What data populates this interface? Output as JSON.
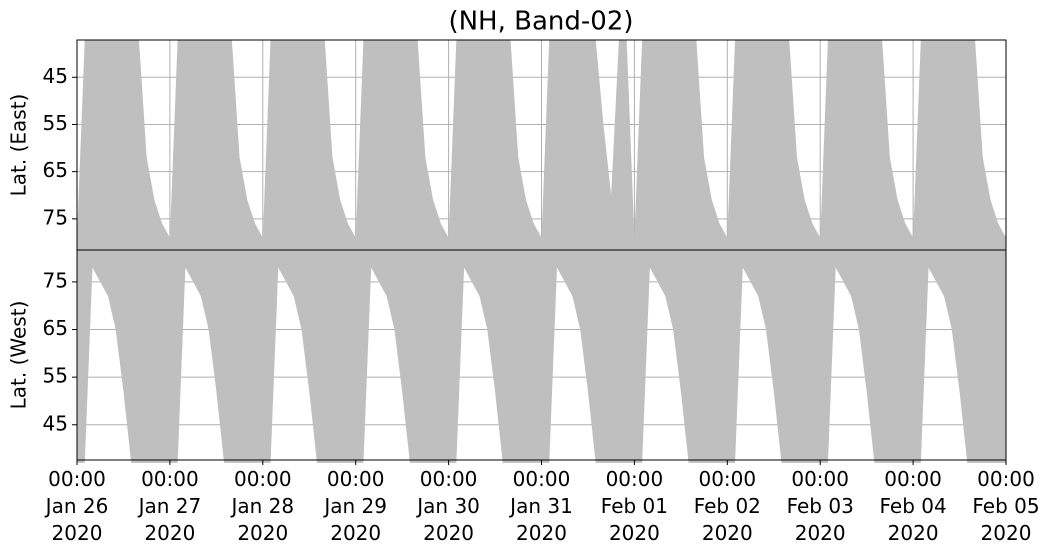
{
  "chart_data": {
    "type": "area",
    "title": "(NH, Band-02)",
    "x": [
      "2020-01-26 00:00",
      "2020-01-26 02:00",
      "2020-01-26 04:00",
      "2020-01-26 06:00",
      "2020-01-26 08:00",
      "2020-01-26 10:00",
      "2020-01-26 12:00",
      "2020-01-26 14:00",
      "2020-01-26 16:00",
      "2020-01-26 18:00",
      "2020-01-26 20:00",
      "2020-01-26 22:00",
      "2020-01-27 00:00",
      "2020-01-27 02:00",
      "2020-01-27 04:00",
      "2020-01-27 06:00",
      "2020-01-27 08:00",
      "2020-01-27 10:00",
      "2020-01-27 12:00",
      "2020-01-27 14:00",
      "2020-01-27 16:00",
      "2020-01-27 18:00",
      "2020-01-27 20:00",
      "2020-01-27 22:00",
      "2020-01-28 00:00",
      "2020-01-28 02:00",
      "2020-01-28 04:00",
      "2020-01-28 06:00",
      "2020-01-28 08:00",
      "2020-01-28 10:00",
      "2020-01-28 12:00",
      "2020-01-28 14:00",
      "2020-01-28 16:00",
      "2020-01-28 18:00",
      "2020-01-28 20:00",
      "2020-01-28 22:00",
      "2020-01-29 00:00",
      "2020-01-29 02:00",
      "2020-01-29 04:00",
      "2020-01-29 06:00",
      "2020-01-29 08:00",
      "2020-01-29 10:00",
      "2020-01-29 12:00",
      "2020-01-29 14:00",
      "2020-01-29 16:00",
      "2020-01-29 18:00",
      "2020-01-29 20:00",
      "2020-01-29 22:00",
      "2020-01-30 00:00",
      "2020-01-30 02:00",
      "2020-01-30 04:00",
      "2020-01-30 06:00",
      "2020-01-30 08:00",
      "2020-01-30 10:00",
      "2020-01-30 12:00",
      "2020-01-30 14:00",
      "2020-01-30 16:00",
      "2020-01-30 18:00",
      "2020-01-30 20:00",
      "2020-01-30 22:00",
      "2020-01-31 00:00",
      "2020-01-31 02:00",
      "2020-01-31 04:00",
      "2020-01-31 06:00",
      "2020-01-31 08:00",
      "2020-01-31 10:00",
      "2020-01-31 12:00",
      "2020-01-31 14:00",
      "2020-01-31 16:00",
      "2020-01-31 18:00",
      "2020-01-31 20:00",
      "2020-01-31 22:00",
      "2020-02-01 00:00",
      "2020-02-01 02:00",
      "2020-02-01 04:00",
      "2020-02-01 06:00",
      "2020-02-01 08:00",
      "2020-02-01 10:00",
      "2020-02-01 12:00",
      "2020-02-01 14:00",
      "2020-02-01 16:00",
      "2020-02-01 18:00",
      "2020-02-01 20:00",
      "2020-02-01 22:00",
      "2020-02-02 00:00",
      "2020-02-02 02:00",
      "2020-02-02 04:00",
      "2020-02-02 06:00",
      "2020-02-02 08:00",
      "2020-02-02 10:00",
      "2020-02-02 12:00",
      "2020-02-02 14:00",
      "2020-02-02 16:00",
      "2020-02-02 18:00",
      "2020-02-02 20:00",
      "2020-02-02 22:00",
      "2020-02-03 00:00",
      "2020-02-03 02:00",
      "2020-02-03 04:00",
      "2020-02-03 06:00",
      "2020-02-03 08:00",
      "2020-02-03 10:00",
      "2020-02-03 12:00",
      "2020-02-03 14:00",
      "2020-02-03 16:00",
      "2020-02-03 18:00",
      "2020-02-03 20:00",
      "2020-02-03 22:00",
      "2020-02-04 00:00",
      "2020-02-04 02:00",
      "2020-02-04 04:00",
      "2020-02-04 06:00",
      "2020-02-04 08:00",
      "2020-02-04 10:00",
      "2020-02-04 12:00",
      "2020-02-04 14:00",
      "2020-02-04 16:00",
      "2020-02-04 18:00",
      "2020-02-04 20:00",
      "2020-02-04 22:00",
      "2020-02-05 00:00"
    ],
    "xlim": [
      "2020-01-26 00:00",
      "2020-02-05 00:00"
    ],
    "xticks": [
      {
        "value": "2020-01-26 00:00",
        "label": "00:00\nJan 26\n2020"
      },
      {
        "value": "2020-01-27 00:00",
        "label": "00:00\nJan 27\n2020"
      },
      {
        "value": "2020-01-28 00:00",
        "label": "00:00\nJan 28\n2020"
      },
      {
        "value": "2020-01-29 00:00",
        "label": "00:00\nJan 29\n2020"
      },
      {
        "value": "2020-01-30 00:00",
        "label": "00:00\nJan 30\n2020"
      },
      {
        "value": "2020-01-31 00:00",
        "label": "00:00\nJan 31\n2020"
      },
      {
        "value": "2020-02-01 00:00",
        "label": "00:00\nFeb 01\n2020"
      },
      {
        "value": "2020-02-02 00:00",
        "label": "00:00\nFeb 02\n2020"
      },
      {
        "value": "2020-02-03 00:00",
        "label": "00:00\nFeb 03\n2020"
      },
      {
        "value": "2020-02-04 00:00",
        "label": "00:00\nFeb 04\n2020"
      },
      {
        "value": "2020-02-05 00:00",
        "label": "00:00\nFeb 05\n2020"
      }
    ],
    "grid": true,
    "series": [
      {
        "name": "Lat. (East)",
        "color": "#bfbfbf",
        "ylim": [
          81.6,
          37.1
        ],
        "yticks": [
          45,
          55,
          65,
          75
        ],
        "values": [
          79,
          37,
          37,
          37,
          37,
          37,
          37,
          37,
          37,
          62,
          71,
          76,
          79,
          37,
          37,
          37,
          37,
          37,
          37,
          37,
          37,
          62,
          71,
          76,
          79,
          37,
          37,
          37,
          37,
          37,
          37,
          37,
          37,
          62,
          71,
          76,
          79,
          37,
          37,
          37,
          37,
          37,
          37,
          37,
          37,
          62,
          71,
          76,
          79,
          37,
          37,
          37,
          37,
          37,
          37,
          37,
          37,
          62,
          71,
          76,
          79,
          37,
          37,
          37,
          37,
          37,
          37,
          37,
          55,
          70,
          37,
          37,
          79,
          37,
          37,
          37,
          37,
          37,
          37,
          37,
          37,
          62,
          71,
          76,
          79,
          37,
          37,
          37,
          37,
          37,
          37,
          37,
          37,
          62,
          71,
          76,
          79,
          37,
          37,
          37,
          37,
          37,
          37,
          37,
          37,
          62,
          71,
          76,
          79,
          37,
          37,
          37,
          37,
          37,
          37,
          37,
          37,
          62,
          71,
          76,
          79
        ]
      },
      {
        "name": "Lat. (West)",
        "color": "#bfbfbf",
        "ylim": [
          37.6,
          81.7
        ],
        "yticks": [
          45,
          55,
          65,
          75
        ],
        "values": [
          37,
          37,
          78,
          75,
          72,
          65,
          52,
          37,
          37,
          37,
          37,
          37,
          37,
          37,
          78,
          75,
          72,
          65,
          52,
          37,
          37,
          37,
          37,
          37,
          37,
          37,
          78,
          75,
          72,
          65,
          52,
          37,
          37,
          37,
          37,
          37,
          37,
          37,
          78,
          75,
          72,
          65,
          52,
          37,
          37,
          37,
          37,
          37,
          37,
          37,
          78,
          75,
          72,
          65,
          52,
          37,
          37,
          37,
          37,
          37,
          37,
          37,
          78,
          75,
          72,
          65,
          52,
          37,
          37,
          37,
          37,
          37,
          37,
          37,
          78,
          75,
          72,
          65,
          52,
          37,
          37,
          37,
          37,
          37,
          37,
          37,
          78,
          75,
          72,
          65,
          52,
          37,
          37,
          37,
          37,
          37,
          37,
          37,
          78,
          75,
          72,
          65,
          52,
          37,
          37,
          37,
          37,
          37,
          37,
          37,
          78,
          75,
          72,
          65,
          52,
          37,
          37,
          37,
          37,
          37,
          37
        ]
      }
    ]
  }
}
